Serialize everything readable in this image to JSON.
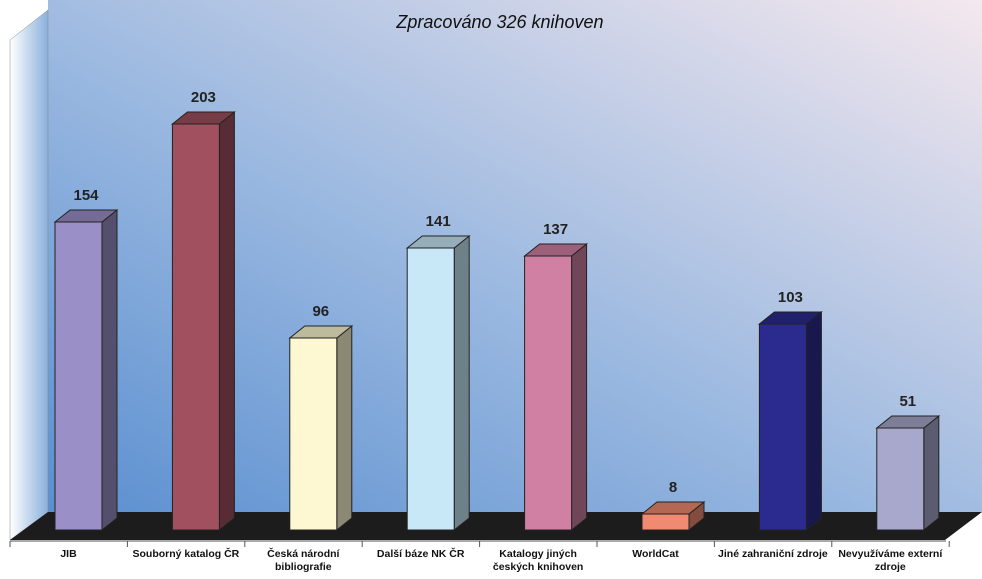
{
  "chart_data": {
    "type": "bar3d",
    "subtitle": "Zpracováno 326 knihoven",
    "categories": [
      "JIB",
      "Souborný katalog ČR",
      "Česká národní bibliografie",
      "Další báze NK ČR",
      "Katalogy jiných českých knihoven",
      "WorldCat",
      "Jiné zahraniční zdroje",
      "Nevyužíváme externí zdroje"
    ],
    "values": [
      154,
      203,
      96,
      141,
      137,
      8,
      103,
      51
    ],
    "colors": [
      "#9b8fc8",
      "#a0505f",
      "#fdf8d2",
      "#c8e8f8",
      "#d080a2",
      "#f08a70",
      "#2b2b8f",
      "#a8a8cc"
    ]
  }
}
